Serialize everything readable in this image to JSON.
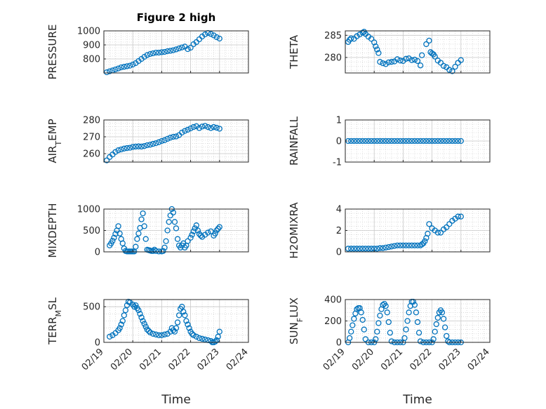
{
  "figure": {
    "title": "Figure 2 high",
    "xlabel": "Time"
  },
  "colors": {
    "marker": "#0072BD",
    "axis": "#262626",
    "grid": "#c8c8c8",
    "frame": "#ffffff"
  },
  "chart_data": [
    {
      "type": "scatter",
      "title": "Figure 2 high",
      "ylabel": "PRESSURE",
      "ylim": [
        700,
        1000
      ],
      "yticks": [
        800,
        900,
        1000
      ],
      "xlim": [
        "02/19",
        "02/24"
      ],
      "xticks": [],
      "grid": true,
      "x": [
        19.1,
        19.2,
        19.3,
        19.4,
        19.5,
        19.6,
        19.7,
        19.8,
        19.9,
        20.0,
        20.1,
        20.2,
        20.3,
        20.4,
        20.5,
        20.6,
        20.7,
        20.8,
        20.9,
        21.0,
        21.1,
        21.2,
        21.3,
        21.4,
        21.5,
        21.6,
        21.7,
        21.8,
        21.9,
        22.0,
        22.1,
        22.2,
        22.3,
        22.4,
        22.5,
        22.6,
        22.7,
        22.8,
        22.9,
        23.0
      ],
      "y": [
        705,
        712,
        718,
        725,
        732,
        740,
        744,
        748,
        752,
        760,
        770,
        785,
        800,
        815,
        828,
        835,
        840,
        845,
        845,
        848,
        850,
        855,
        858,
        862,
        868,
        875,
        882,
        888,
        870,
        880,
        905,
        920,
        940,
        960,
        975,
        985,
        978,
        968,
        955,
        945
      ]
    },
    {
      "type": "scatter",
      "ylabel": "THETA",
      "ylim": [
        276.5,
        286
      ],
      "yticks": [
        280,
        285
      ],
      "xlim": [
        "02/19",
        "02/24"
      ],
      "xticks": [],
      "grid": true,
      "x": [
        19.1,
        19.15,
        19.2,
        19.3,
        19.4,
        19.5,
        19.6,
        19.65,
        19.7,
        19.8,
        19.9,
        20.0,
        20.05,
        20.1,
        20.15,
        20.2,
        20.3,
        20.4,
        20.5,
        20.6,
        20.7,
        20.8,
        20.9,
        21.0,
        21.1,
        21.2,
        21.3,
        21.4,
        21.5,
        21.6,
        21.65,
        21.8,
        21.9,
        21.95,
        22.0,
        22.05,
        22.1,
        22.2,
        22.3,
        22.4,
        22.5,
        22.6,
        22.7,
        22.8,
        22.9,
        23.0
      ],
      "y": [
        283.5,
        284,
        284.3,
        284.2,
        284.8,
        285.2,
        285.6,
        285.8,
        285.3,
        284.7,
        284.2,
        283.4,
        282.5,
        281.8,
        281,
        279,
        278.7,
        278.5,
        278.9,
        279,
        279.1,
        279.6,
        279.3,
        279.2,
        279.7,
        279.8,
        279.4,
        279.5,
        279.2,
        278.2,
        280.5,
        283,
        283.8,
        281.2,
        280.9,
        280.7,
        280.2,
        279.3,
        278.8,
        278.1,
        277.8,
        277.2,
        276.9,
        277.9,
        278.8,
        279.4
      ]
    },
    {
      "type": "scatter",
      "ylabel": "AIR_TEMP",
      "ylim": [
        255,
        280
      ],
      "yticks": [
        260,
        270,
        280
      ],
      "xlim": [
        "02/19",
        "02/24"
      ],
      "xticks": [],
      "grid": true,
      "x": [
        19.1,
        19.2,
        19.3,
        19.4,
        19.5,
        19.6,
        19.7,
        19.8,
        19.9,
        20.0,
        20.1,
        20.2,
        20.3,
        20.4,
        20.5,
        20.6,
        20.7,
        20.8,
        20.9,
        21.0,
        21.1,
        21.2,
        21.3,
        21.4,
        21.5,
        21.6,
        21.7,
        21.8,
        21.9,
        22.0,
        22.1,
        22.2,
        22.3,
        22.4,
        22.5,
        22.6,
        22.7,
        22.8,
        22.9,
        23.0
      ],
      "y": [
        256,
        258,
        259.5,
        261,
        262,
        262.5,
        263,
        263.3,
        263.5,
        264,
        264.2,
        264.3,
        264.2,
        264.5,
        265,
        265.3,
        265.8,
        266.2,
        266.8,
        267.5,
        268,
        268.8,
        269.5,
        270,
        270.2,
        271,
        272.5,
        273.5,
        274.2,
        275,
        275.8,
        276.3,
        275.2,
        276.1,
        276.5,
        275.8,
        275.2,
        275.8,
        275.4,
        274.8
      ]
    },
    {
      "type": "scatter",
      "ylabel": "RAINFALL",
      "ylim": [
        -1,
        1
      ],
      "yticks": [
        -1,
        0,
        1
      ],
      "xlim": [
        "02/19",
        "02/24"
      ],
      "xticks": [],
      "grid": true,
      "x": [
        19.1,
        19.2,
        19.3,
        19.4,
        19.5,
        19.6,
        19.7,
        19.8,
        19.9,
        20.0,
        20.1,
        20.2,
        20.3,
        20.4,
        20.5,
        20.6,
        20.7,
        20.8,
        20.9,
        21.0,
        21.1,
        21.2,
        21.3,
        21.4,
        21.5,
        21.6,
        21.7,
        21.8,
        21.9,
        22.0,
        22.1,
        22.2,
        22.3,
        22.4,
        22.5,
        22.6,
        22.7,
        22.8,
        22.9,
        23.0
      ],
      "y": [
        0,
        0,
        0,
        0,
        0,
        0,
        0,
        0,
        0,
        0,
        0,
        0,
        0,
        0,
        0,
        0,
        0,
        0,
        0,
        0,
        0,
        0,
        0,
        0,
        0,
        0,
        0,
        0,
        0,
        0,
        0,
        0,
        0,
        0,
        0,
        0,
        0,
        0,
        0,
        0
      ]
    },
    {
      "type": "scatter",
      "ylabel": "MIXDEPTH",
      "ylim": [
        0,
        1000
      ],
      "yticks": [
        0,
        500,
        1000
      ],
      "xlim": [
        "02/19",
        "02/24"
      ],
      "xticks": [],
      "grid": true,
      "x": [
        19.2,
        19.25,
        19.3,
        19.35,
        19.4,
        19.45,
        19.5,
        19.55,
        19.6,
        19.65,
        19.7,
        19.75,
        19.8,
        19.85,
        19.9,
        19.95,
        20.0,
        20.05,
        20.1,
        20.15,
        20.2,
        20.25,
        20.3,
        20.35,
        20.4,
        20.45,
        20.5,
        20.55,
        20.6,
        20.65,
        20.7,
        20.75,
        20.8,
        20.9,
        21.0,
        21.05,
        21.1,
        21.15,
        21.2,
        21.25,
        21.3,
        21.35,
        21.4,
        21.45,
        21.5,
        21.55,
        21.6,
        21.65,
        21.7,
        21.75,
        21.8,
        21.85,
        21.9,
        22.0,
        22.05,
        22.1,
        22.15,
        22.2,
        22.25,
        22.3,
        22.35,
        22.4,
        22.5,
        22.6,
        22.7,
        22.8,
        22.85,
        22.9,
        22.95,
        23.0
      ],
      "y": [
        150,
        200,
        260,
        330,
        420,
        500,
        600,
        430,
        300,
        200,
        80,
        20,
        10,
        10,
        10,
        10,
        10,
        10,
        120,
        300,
        430,
        560,
        760,
        900,
        600,
        300,
        50,
        40,
        30,
        20,
        20,
        50,
        20,
        10,
        10,
        20,
        100,
        250,
        500,
        700,
        850,
        1000,
        920,
        700,
        550,
        300,
        150,
        100,
        150,
        200,
        100,
        150,
        250,
        330,
        400,
        480,
        550,
        620,
        500,
        420,
        380,
        350,
        400,
        450,
        480,
        380,
        430,
        500,
        540,
        580
      ]
    },
    {
      "type": "scatter",
      "ylabel": "H2OMIXRA",
      "ylim": [
        0,
        4
      ],
      "yticks": [
        0,
        2,
        4
      ],
      "xlim": [
        "02/19",
        "02/24"
      ],
      "xticks": [],
      "grid": true,
      "x": [
        19.1,
        19.2,
        19.3,
        19.4,
        19.5,
        19.6,
        19.7,
        19.8,
        19.9,
        20.0,
        20.1,
        20.2,
        20.3,
        20.4,
        20.5,
        20.6,
        20.7,
        20.8,
        20.9,
        21.0,
        21.1,
        21.2,
        21.3,
        21.4,
        21.5,
        21.6,
        21.65,
        21.7,
        21.75,
        21.8,
        21.85,
        21.9,
        22.0,
        22.1,
        22.2,
        22.3,
        22.4,
        22.5,
        22.6,
        22.7,
        22.8,
        22.9,
        23.0
      ],
      "y": [
        0.3,
        0.3,
        0.3,
        0.3,
        0.3,
        0.3,
        0.3,
        0.3,
        0.3,
        0.3,
        0.3,
        0.35,
        0.35,
        0.4,
        0.45,
        0.5,
        0.55,
        0.6,
        0.6,
        0.6,
        0.6,
        0.6,
        0.6,
        0.6,
        0.6,
        0.6,
        0.7,
        0.8,
        1.0,
        1.3,
        1.7,
        2.6,
        2.2,
        2.0,
        1.8,
        1.8,
        2.1,
        2.3,
        2.6,
        2.9,
        3.1,
        3.3,
        3.3
      ]
    },
    {
      "type": "scatter",
      "ylabel": "TERR_MSL",
      "ylim": [
        0,
        600
      ],
      "yticks": [
        0,
        500
      ],
      "xlim": [
        "02/19",
        "02/24"
      ],
      "xticks": [
        "02/19",
        "02/20",
        "02/21",
        "02/22",
        "02/23",
        "02/24"
      ],
      "xlabel": "Time",
      "grid": true,
      "x": [
        19.2,
        19.3,
        19.4,
        19.5,
        19.55,
        19.6,
        19.65,
        19.7,
        19.75,
        19.8,
        19.85,
        19.9,
        20.0,
        20.05,
        20.1,
        20.15,
        20.2,
        20.25,
        20.3,
        20.35,
        20.4,
        20.45,
        20.5,
        20.55,
        20.6,
        20.7,
        20.8,
        20.9,
        21.0,
        21.1,
        21.2,
        21.3,
        21.35,
        21.4,
        21.45,
        21.5,
        21.55,
        21.6,
        21.65,
        21.7,
        21.75,
        21.8,
        21.85,
        21.9,
        21.95,
        22.0,
        22.05,
        22.1,
        22.2,
        22.3,
        22.4,
        22.5,
        22.6,
        22.7,
        22.75,
        22.8,
        22.85,
        22.9,
        22.95,
        23.0
      ],
      "y": [
        80,
        100,
        130,
        170,
        200,
        250,
        300,
        380,
        450,
        520,
        570,
        560,
        530,
        500,
        520,
        480,
        450,
        400,
        350,
        300,
        260,
        220,
        180,
        160,
        140,
        120,
        110,
        100,
        100,
        110,
        120,
        150,
        200,
        170,
        150,
        200,
        280,
        380,
        470,
        500,
        430,
        380,
        300,
        250,
        200,
        150,
        120,
        100,
        80,
        60,
        50,
        40,
        30,
        20,
        0,
        0,
        10,
        30,
        80,
        150
      ]
    },
    {
      "type": "scatter",
      "ylabel": "SUN_FLUX",
      "ylim": [
        0,
        400
      ],
      "yticks": [
        0,
        200,
        400
      ],
      "xlim": [
        "02/19",
        "02/24"
      ],
      "xticks": [
        "02/19",
        "02/20",
        "02/21",
        "02/22",
        "02/23",
        "02/24"
      ],
      "xlabel": "Time",
      "grid": true,
      "x": [
        19.1,
        19.15,
        19.2,
        19.25,
        19.3,
        19.35,
        19.4,
        19.45,
        19.5,
        19.55,
        19.6,
        19.65,
        19.7,
        19.8,
        19.9,
        20.0,
        20.05,
        20.1,
        20.15,
        20.2,
        20.25,
        20.3,
        20.35,
        20.4,
        20.45,
        20.5,
        20.55,
        20.6,
        20.7,
        20.8,
        20.9,
        21.0,
        21.05,
        21.1,
        21.15,
        21.2,
        21.25,
        21.3,
        21.35,
        21.4,
        21.45,
        21.5,
        21.55,
        21.6,
        21.7,
        21.8,
        21.9,
        22.0,
        22.05,
        22.1,
        22.15,
        22.2,
        22.25,
        22.3,
        22.35,
        22.4,
        22.45,
        22.5,
        22.55,
        22.6,
        22.7,
        22.8,
        22.9,
        23.0
      ],
      "y": [
        0,
        40,
        100,
        160,
        220,
        270,
        310,
        320,
        320,
        280,
        210,
        120,
        30,
        0,
        0,
        0,
        30,
        100,
        180,
        250,
        310,
        350,
        360,
        340,
        280,
        190,
        90,
        10,
        0,
        0,
        0,
        0,
        40,
        120,
        200,
        280,
        340,
        380,
        380,
        350,
        280,
        190,
        90,
        10,
        0,
        0,
        0,
        0,
        30,
        100,
        170,
        230,
        280,
        300,
        280,
        220,
        140,
        60,
        10,
        0,
        0,
        0,
        0,
        0
      ]
    }
  ]
}
